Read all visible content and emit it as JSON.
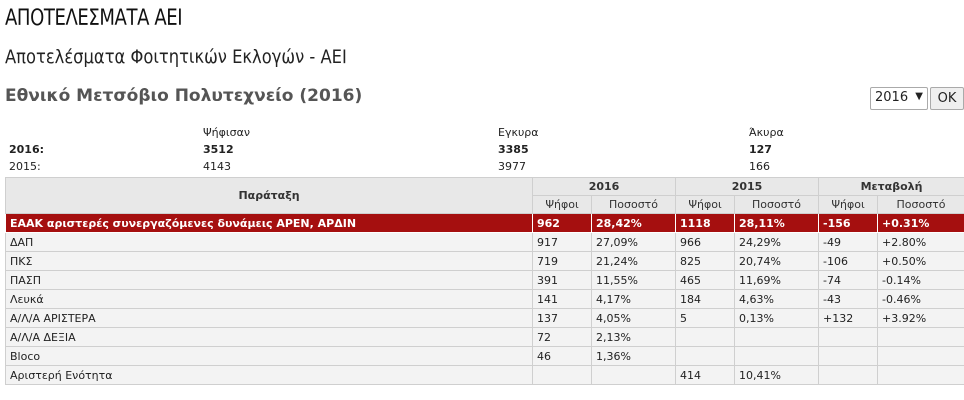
{
  "header": {
    "title": "ΑΠΟΤΕΛΕΣΜΑΤΑ ΑΕΙ",
    "subtitle": "Αποτελέσματα Φοιτητικών Εκλογών - ΑΕΙ",
    "institution": "Εθνικό Μετσόβιο Πολυτεχνείο (2016)"
  },
  "year_select": {
    "value": "2016",
    "ok_label": "OK"
  },
  "summary": {
    "headers": [
      "Ψήφισαν",
      "Εγκυρα",
      "Άκυρα"
    ],
    "rows": [
      {
        "year": "2016:",
        "voted": "3512",
        "valid": "3385",
        "invalid": "127"
      },
      {
        "year": "2015:",
        "voted": "4143",
        "valid": "3977",
        "invalid": "166"
      }
    ]
  },
  "table": {
    "party_header": "Παράταξη",
    "group_headers": [
      "2016",
      "2015",
      "Μεταβολή"
    ],
    "sub_headers": [
      "Ψήφοι",
      "Ποσοστό",
      "Ψήφοι",
      "Ποσοστό",
      "Ψήφοι",
      "Ποσοστό"
    ],
    "rows": [
      [
        "ΕΑΑΚ αριστερές συνεργαζόμενες δυνάμεις ΑΡΕΝ, ΑΡΔΙΝ",
        "962",
        "28,42%",
        "1118",
        "28,11%",
        "-156",
        "+0.31%"
      ],
      [
        "ΔΑΠ",
        "917",
        "27,09%",
        "966",
        "24,29%",
        "-49",
        "+2.80%"
      ],
      [
        "ΠΚΣ",
        "719",
        "21,24%",
        "825",
        "20,74%",
        "-106",
        "+0.50%"
      ],
      [
        "ΠΑΣΠ",
        "391",
        "11,55%",
        "465",
        "11,69%",
        "-74",
        "-0.14%"
      ],
      [
        "Λευκά",
        "141",
        "4,17%",
        "184",
        "4,63%",
        "-43",
        "-0.46%"
      ],
      [
        "Α/Λ/Α ΑΡΙΣΤΕΡΑ",
        "137",
        "4,05%",
        "5",
        "0,13%",
        "+132",
        "+3.92%"
      ],
      [
        "Α/Λ/Α ΔΕΞΙΑ",
        "72",
        "2,13%",
        "",
        "",
        "",
        ""
      ],
      [
        "Bloco",
        "46",
        "1,36%",
        "",
        "",
        "",
        ""
      ],
      [
        "Αριστερή Ενότητα",
        "",
        "",
        "414",
        "10,41%",
        "",
        ""
      ]
    ]
  },
  "colors": {
    "lead_row": "#a50f0f",
    "header_bg": "#e8e8e8",
    "row_bg": "#f3f3f3"
  }
}
